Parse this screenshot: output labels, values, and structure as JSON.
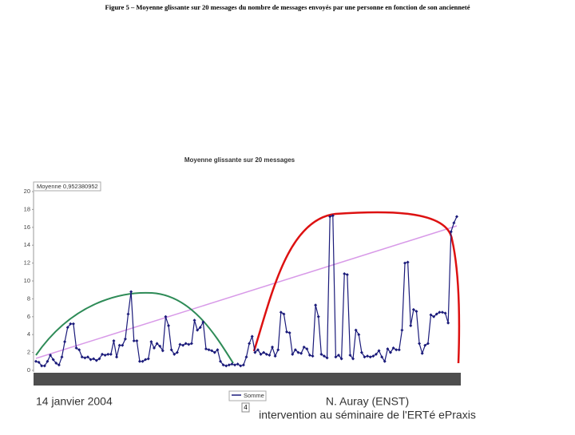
{
  "figure_caption": "Figure 5 – Moyenne glissante sur 20 messages du nombre de messages envoyés par une personne en fonction de son ancienneté",
  "footer": {
    "date": "14 janvier 2004",
    "author": "N. Auray (ENST)",
    "event": "intervention au séminaire de l'ERTé ePraxis",
    "page": "4"
  },
  "chart_data": {
    "type": "line",
    "title": "Moyenne glissante sur 20 messages",
    "annotation": "Moyenne 0,952380952",
    "ylim": [
      0,
      20
    ],
    "yticks": [
      0,
      2,
      4,
      6,
      8,
      10,
      12,
      14,
      16,
      18,
      20
    ],
    "grid": false,
    "series": [
      {
        "name": "Somme",
        "color": "#1a1a7a",
        "values": [
          1.0,
          0.9,
          0.5,
          0.5,
          1.0,
          1.7,
          1.2,
          0.8,
          0.6,
          1.5,
          3.2,
          4.8,
          5.2,
          5.2,
          2.5,
          2.3,
          1.5,
          1.4,
          1.5,
          1.2,
          1.3,
          1.1,
          1.3,
          1.8,
          1.7,
          1.8,
          1.8,
          3.3,
          1.5,
          2.8,
          2.8,
          3.5,
          6.3,
          8.8,
          3.3,
          3.3,
          1.0,
          1.0,
          1.2,
          1.3,
          3.2,
          2.5,
          3.0,
          2.7,
          2.2,
          6.0,
          5.0,
          2.3,
          1.8,
          2.0,
          2.9,
          2.8,
          3.0,
          2.9,
          3.0,
          5.6,
          4.5,
          4.8,
          5.4,
          2.4,
          2.3,
          2.2,
          2.0,
          2.3,
          1.0,
          0.6,
          0.5,
          0.6,
          0.7,
          0.6,
          0.7,
          0.5,
          0.6,
          1.5,
          3.0,
          3.8,
          2.0,
          2.3,
          1.8,
          2.0,
          1.8,
          1.7,
          2.6,
          1.6,
          2.3,
          6.5,
          6.3,
          4.3,
          4.2,
          1.8,
          2.3,
          2.0,
          1.9,
          2.6,
          2.4,
          1.7,
          1.6,
          7.3,
          6.0,
          1.8,
          1.6,
          1.4,
          17.2,
          17.3,
          1.5,
          1.7,
          1.3,
          10.8,
          10.7,
          1.7,
          1.3,
          4.5,
          4.0,
          2.0,
          1.5,
          1.6,
          1.5,
          1.6,
          1.8,
          2.2,
          1.5,
          1.0,
          2.4,
          2.0,
          2.5,
          2.3,
          2.3,
          4.5,
          12.0,
          12.1,
          5.0,
          6.8,
          6.6,
          3.0,
          1.9,
          2.8,
          3.0,
          6.2,
          6.0,
          6.3,
          6.5,
          6.5,
          6.4,
          5.3,
          15.5,
          16.5,
          17.2
        ]
      }
    ]
  }
}
